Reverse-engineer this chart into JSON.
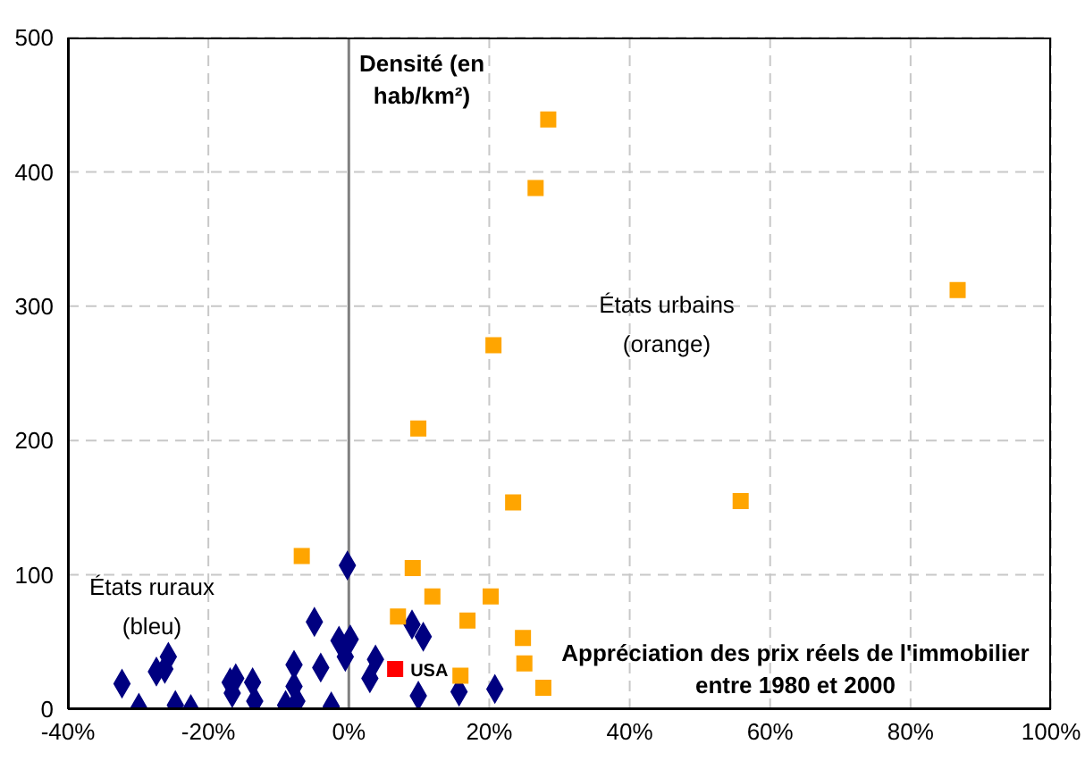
{
  "chart_data": {
    "type": "scatter",
    "xlabel": "Appréciation des prix réels de l'immobilier entre 1980 et 2000",
    "ylabel": "Densité (en hab/km²)",
    "annotations": [
      "États ruraux (bleu)",
      "États urbains (orange)"
    ],
    "xlim": [
      -40,
      100
    ],
    "xticks": [
      {
        "value": -40,
        "label": "-40%"
      },
      {
        "value": -20,
        "label": "-20%"
      },
      {
        "value": 0,
        "label": "0%"
      },
      {
        "value": 20,
        "label": "20%"
      },
      {
        "value": 40,
        "label": "40%"
      },
      {
        "value": 60,
        "label": "60%"
      },
      {
        "value": 80,
        "label": "80%"
      },
      {
        "value": 100,
        "label": "100%"
      }
    ],
    "ylim": [
      0,
      500
    ],
    "yticks": [
      0,
      100,
      200,
      300,
      400,
      500
    ],
    "grid": true,
    "legend": false,
    "ref_lines": [
      {
        "axis": "x",
        "value": 0,
        "color": "#808080"
      }
    ],
    "series": [
      {
        "color": "#000080",
        "marker": "diamond",
        "x": [
          -0.2,
          -4.9,
          9.0,
          10.6,
          -1.4,
          0.2,
          -0.5,
          3.8,
          3.0,
          -4.0,
          -7.8,
          -7.8,
          -7.4,
          -9.0,
          -2.5,
          -13.4,
          -13.7,
          -16.1,
          -16.9,
          -16.6,
          -25.7,
          -26.2,
          -27.4,
          -32.3,
          -29.9,
          -24.7,
          -22.5,
          9.9,
          15.7,
          20.8
        ],
        "values": [
          107,
          65,
          63,
          54,
          51,
          52,
          39,
          37,
          23,
          31,
          33,
          17,
          6,
          3,
          2,
          6,
          20,
          23,
          20,
          12,
          39,
          30,
          28,
          19,
          1,
          3,
          0,
          10,
          13,
          15
        ]
      },
      {
        "color": "#ffa500",
        "marker": "square",
        "x": [
          28.4,
          26.6,
          20.6,
          9.9,
          23.4,
          55.8,
          86.7,
          -6.7,
          9.1,
          11.9,
          20.2,
          7.0,
          16.9,
          24.8,
          25.0,
          15.9,
          27.7
        ],
        "values": [
          439,
          388,
          271,
          209,
          154,
          155,
          312,
          114,
          105,
          84,
          84,
          69,
          66,
          53,
          34,
          25,
          16
        ]
      },
      {
        "name": "USA",
        "color": "#ff0000",
        "marker": "square",
        "x": [
          6.6
        ],
        "values": [
          30
        ]
      }
    ]
  }
}
